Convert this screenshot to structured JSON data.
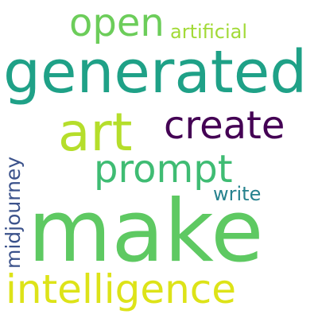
{
  "wordcloud": {
    "background": "#ffffff",
    "words": {
      "generated": {
        "text": "generated",
        "color": "#1fa187"
      },
      "open": {
        "text": "open",
        "color": "#6ccd5a"
      },
      "artificial": {
        "text": "artificial",
        "color": "#a2da37"
      },
      "art": {
        "text": "art",
        "color": "#b5de2b"
      },
      "create": {
        "text": "create",
        "color": "#440154"
      },
      "prompt": {
        "text": "prompt",
        "color": "#3fbc73"
      },
      "write": {
        "text": "write",
        "color": "#26828e"
      },
      "midjourney": {
        "text": "midjourney",
        "color": "#3b528b"
      },
      "make": {
        "text": "make",
        "color": "#5ec962"
      },
      "intelligence": {
        "text": "intelligence",
        "color": "#dde318"
      }
    }
  }
}
